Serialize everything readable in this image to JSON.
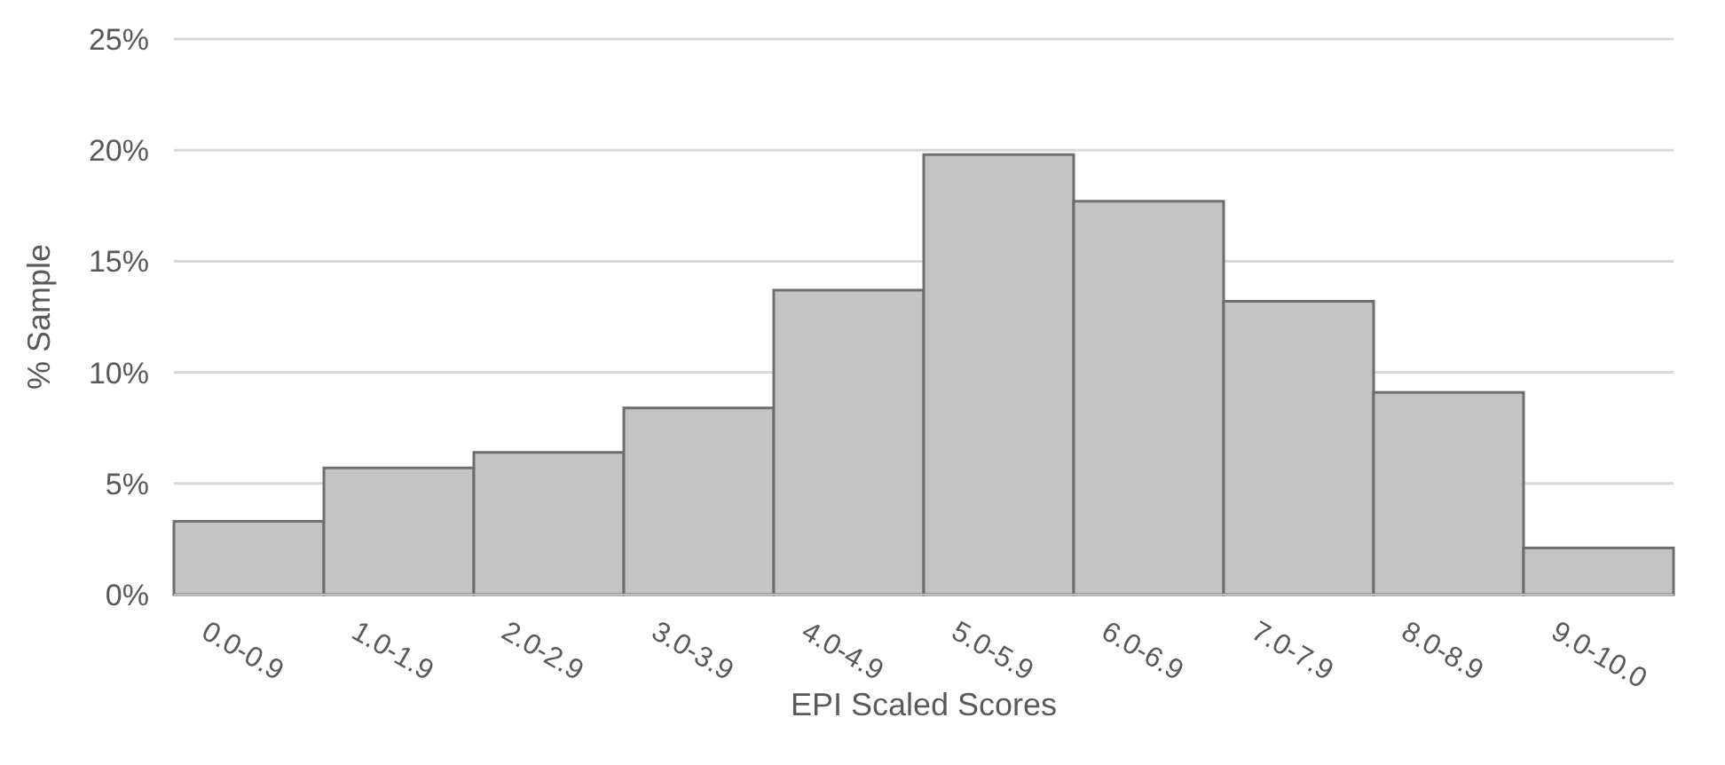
{
  "chart_data": {
    "type": "bar",
    "xlabel": "EPI Scaled Scores",
    "ylabel": "% Sample",
    "categories": [
      "0.0-0.9",
      "1.0-1.9",
      "2.0-2.9",
      "3.0-3.9",
      "4.0-4.9",
      "5.0-5.9",
      "6.0-6.9",
      "7.0-7.9",
      "8.0-8.9",
      "9.0-10.0"
    ],
    "values": [
      3.3,
      5.7,
      6.4,
      8.4,
      13.7,
      19.8,
      17.7,
      13.2,
      9.1,
      2.1
    ],
    "color": "#c4c4c4",
    "ylim": [
      0,
      25
    ],
    "yticks": [
      {
        "value": 0,
        "label": "0%"
      },
      {
        "value": 5,
        "label": "5%"
      },
      {
        "value": 10,
        "label": "10%"
      },
      {
        "value": 15,
        "label": "15%"
      },
      {
        "value": 20,
        "label": "20%"
      },
      {
        "value": 25,
        "label": "25%"
      }
    ],
    "grid": "y"
  }
}
